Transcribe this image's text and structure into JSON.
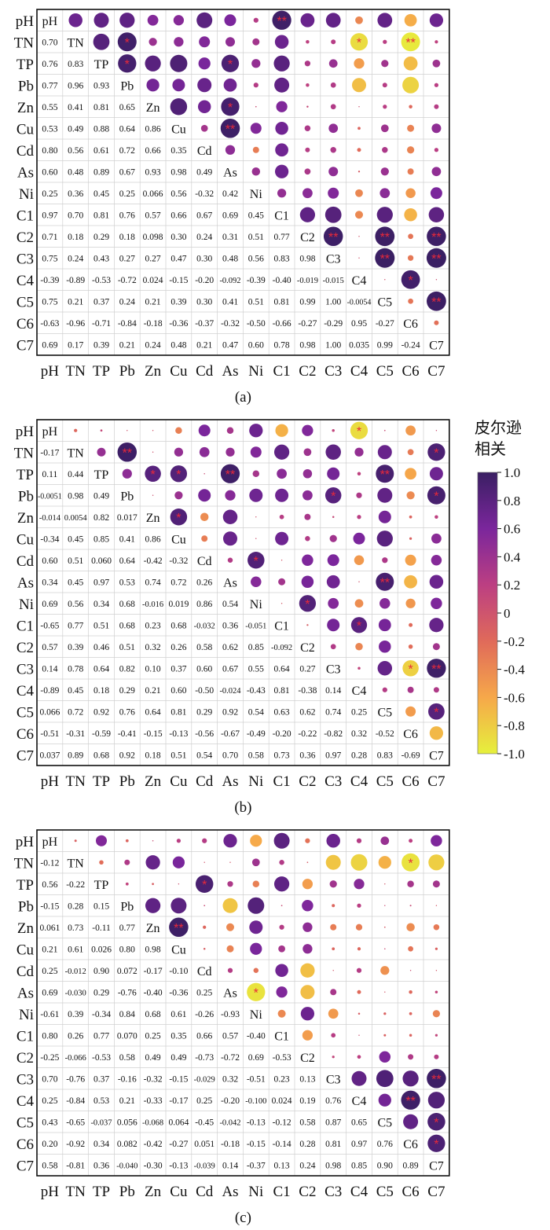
{
  "colorbar": {
    "title_line1": "皮尔逊",
    "title_line2": "相关",
    "ticks": [
      "1.0",
      "0.8",
      "0.6",
      "0.4",
      "0.2",
      "0",
      "-0.2",
      "-0.4",
      "-0.6",
      "-0.8",
      "-1.0"
    ],
    "range": [
      -1,
      1
    ],
    "colors": [
      "#e6f03c",
      "#f6a84a",
      "#e06a5a",
      "#bc3f82",
      "#7b269c",
      "#3a1f63"
    ]
  },
  "chart_data": [
    {
      "type": "heatmap",
      "panel_label": "(a)",
      "variables": [
        "pH",
        "TN",
        "TP",
        "Pb",
        "Zn",
        "Cu",
        "Cd",
        "As",
        "Ni",
        "C1",
        "C2",
        "C3",
        "C4",
        "C5",
        "C6",
        "C7"
      ],
      "lower_labels": [
        [],
        [
          "0.70"
        ],
        [
          "0.76",
          "0.83"
        ],
        [
          "0.77",
          "0.96",
          "0.93"
        ],
        [
          "0.55",
          "0.41",
          "0.81",
          "0.65"
        ],
        [
          "0.53",
          "0.49",
          "0.88",
          "0.64",
          "0.86"
        ],
        [
          "0.80",
          "0.56",
          "0.61",
          "0.72",
          "0.66",
          "0.35"
        ],
        [
          "0.60",
          "0.48",
          "0.89",
          "0.67",
          "0.93",
          "0.98",
          "0.49"
        ],
        [
          "0.25",
          "0.36",
          "0.45",
          "0.25",
          "0.066",
          "0.56",
          "-0.32",
          "0.42"
        ],
        [
          "0.97",
          "0.70",
          "0.81",
          "0.76",
          "0.57",
          "0.66",
          "0.67",
          "0.69",
          "0.45"
        ],
        [
          "0.71",
          "0.18",
          "0.29",
          "0.18",
          "0.098",
          "0.30",
          "0.24",
          "0.31",
          "0.51",
          "0.77"
        ],
        [
          "0.75",
          "0.24",
          "0.43",
          "0.27",
          "0.27",
          "0.47",
          "0.30",
          "0.48",
          "0.56",
          "0.83",
          "0.98"
        ],
        [
          "-0.39",
          "-0.89",
          "-0.53",
          "-0.72",
          "0.024",
          "-0.15",
          "-0.20",
          "-0.092",
          "-0.39",
          "-0.40",
          "-0.019",
          "-0.015"
        ],
        [
          "0.75",
          "0.21",
          "0.37",
          "0.24",
          "0.21",
          "0.39",
          "0.30",
          "0.41",
          "0.51",
          "0.81",
          "0.99",
          "1.00",
          "-0.0054"
        ],
        [
          "-0.63",
          "-0.96",
          "-0.71",
          "-0.84",
          "-0.18",
          "-0.36",
          "-0.37",
          "-0.32",
          "-0.50",
          "-0.66",
          "-0.27",
          "-0.29",
          "0.95",
          "-0.27"
        ],
        [
          "0.69",
          "0.17",
          "0.39",
          "0.21",
          "0.24",
          "0.48",
          "0.21",
          "0.47",
          "0.60",
          "0.78",
          "0.98",
          "1.00",
          "0.035",
          "0.99",
          "-0.24"
        ]
      ],
      "significance": [
        {
          "row": 0,
          "col": 9,
          "mark": "**"
        },
        {
          "row": 1,
          "col": 3,
          "mark": "*"
        },
        {
          "row": 1,
          "col": 12,
          "mark": "*"
        },
        {
          "row": 1,
          "col": 14,
          "mark": "**"
        },
        {
          "row": 2,
          "col": 3,
          "mark": "*"
        },
        {
          "row": 2,
          "col": 7,
          "mark": "*"
        },
        {
          "row": 4,
          "col": 7,
          "mark": "*"
        },
        {
          "row": 5,
          "col": 7,
          "mark": "**"
        },
        {
          "row": 10,
          "col": 11,
          "mark": "**"
        },
        {
          "row": 10,
          "col": 13,
          "mark": "**"
        },
        {
          "row": 10,
          "col": 15,
          "mark": "**"
        },
        {
          "row": 11,
          "col": 13,
          "mark": "**"
        },
        {
          "row": 11,
          "col": 15,
          "mark": "**"
        },
        {
          "row": 12,
          "col": 14,
          "mark": "*"
        },
        {
          "row": 13,
          "col": 15,
          "mark": "**"
        }
      ]
    },
    {
      "type": "heatmap",
      "panel_label": "(b)",
      "variables": [
        "pH",
        "TN",
        "TP",
        "Pb",
        "Zn",
        "Cu",
        "Cd",
        "As",
        "Ni",
        "C1",
        "C2",
        "C3",
        "C4",
        "C5",
        "C6",
        "C7"
      ],
      "lower_labels": [
        [],
        [
          "-0.17"
        ],
        [
          "0.11",
          "0.44"
        ],
        [
          "-0.0051",
          "0.98",
          "0.49"
        ],
        [
          "-0.014",
          "0.0054",
          "0.82",
          "0.017"
        ],
        [
          "-0.34",
          "0.45",
          "0.85",
          "0.41",
          "0.86"
        ],
        [
          "0.60",
          "0.51",
          "0.060",
          "0.64",
          "-0.42",
          "-0.32"
        ],
        [
          "0.34",
          "0.45",
          "0.97",
          "0.53",
          "0.74",
          "0.72",
          "0.26"
        ],
        [
          "0.69",
          "0.56",
          "0.34",
          "0.68",
          "-0.016",
          "0.019",
          "0.86",
          "0.54"
        ],
        [
          "-0.65",
          "0.77",
          "0.51",
          "0.68",
          "0.23",
          "0.68",
          "-0.032",
          "0.36",
          "-0.051"
        ],
        [
          "0.57",
          "0.39",
          "0.46",
          "0.51",
          "0.32",
          "0.26",
          "0.58",
          "0.62",
          "0.85",
          "-0.092"
        ],
        [
          "0.14",
          "0.78",
          "0.64",
          "0.82",
          "0.10",
          "0.37",
          "0.60",
          "0.67",
          "0.55",
          "0.64",
          "0.27"
        ],
        [
          "-0.89",
          "0.45",
          "0.18",
          "0.29",
          "0.21",
          "0.60",
          "-0.50",
          "-0.024",
          "-0.43",
          "0.81",
          "-0.38",
          "0.14"
        ],
        [
          "0.066",
          "0.72",
          "0.92",
          "0.76",
          "0.64",
          "0.81",
          "0.29",
          "0.92",
          "0.54",
          "0.63",
          "0.62",
          "0.74",
          "0.25"
        ],
        [
          "-0.51",
          "-0.31",
          "-0.59",
          "-0.41",
          "-0.15",
          "-0.13",
          "-0.56",
          "-0.67",
          "-0.49",
          "-0.20",
          "-0.22",
          "-0.82",
          "0.32",
          "-0.52"
        ],
        [
          "0.037",
          "0.89",
          "0.68",
          "0.92",
          "0.18",
          "0.51",
          "0.54",
          "0.70",
          "0.58",
          "0.73",
          "0.36",
          "0.97",
          "0.28",
          "0.83",
          "-0.69"
        ]
      ],
      "significance": [
        {
          "row": 0,
          "col": 12,
          "mark": "*"
        },
        {
          "row": 1,
          "col": 3,
          "mark": "**"
        },
        {
          "row": 1,
          "col": 15,
          "mark": "*"
        },
        {
          "row": 2,
          "col": 4,
          "mark": "*"
        },
        {
          "row": 2,
          "col": 5,
          "mark": "*"
        },
        {
          "row": 2,
          "col": 7,
          "mark": "**"
        },
        {
          "row": 2,
          "col": 13,
          "mark": "**"
        },
        {
          "row": 3,
          "col": 11,
          "mark": "*"
        },
        {
          "row": 3,
          "col": 15,
          "mark": "*"
        },
        {
          "row": 4,
          "col": 5,
          "mark": "*"
        },
        {
          "row": 6,
          "col": 8,
          "mark": "*"
        },
        {
          "row": 7,
          "col": 13,
          "mark": "**"
        },
        {
          "row": 8,
          "col": 10,
          "mark": "*"
        },
        {
          "row": 9,
          "col": 12,
          "mark": "*"
        },
        {
          "row": 11,
          "col": 14,
          "mark": "*"
        },
        {
          "row": 11,
          "col": 15,
          "mark": "**"
        },
        {
          "row": 13,
          "col": 15,
          "mark": "*"
        }
      ]
    },
    {
      "type": "heatmap",
      "panel_label": "(c)",
      "variables": [
        "pH",
        "TN",
        "TP",
        "Pb",
        "Zn",
        "Cu",
        "Cd",
        "As",
        "Ni",
        "C1",
        "C2",
        "C3",
        "C4",
        "C5",
        "C6",
        "C7"
      ],
      "lower_labels": [
        [],
        [
          "-0.12"
        ],
        [
          "0.56",
          "-0.22"
        ],
        [
          "-0.15",
          "0.28",
          "0.15"
        ],
        [
          "0.061",
          "0.73",
          "-0.11",
          "0.77"
        ],
        [
          "0.21",
          "0.61",
          "0.026",
          "0.80",
          "0.98"
        ],
        [
          "0.25",
          "-0.012",
          "0.90",
          "0.072",
          "-0.17",
          "-0.10"
        ],
        [
          "0.69",
          "-0.030",
          "0.29",
          "-0.76",
          "-0.40",
          "-0.36",
          "0.25"
        ],
        [
          "-0.61",
          "0.39",
          "-0.34",
          "0.84",
          "0.68",
          "0.61",
          "-0.26",
          "-0.93"
        ],
        [
          "0.80",
          "0.26",
          "0.77",
          "0.070",
          "0.25",
          "0.35",
          "0.66",
          "0.57",
          "-0.40"
        ],
        [
          "-0.25",
          "-0.066",
          "-0.53",
          "0.58",
          "0.49",
          "0.49",
          "-0.73",
          "-0.72",
          "0.69",
          "-0.53"
        ],
        [
          "0.70",
          "-0.76",
          "0.37",
          "-0.16",
          "-0.32",
          "-0.15",
          "-0.029",
          "0.32",
          "-0.51",
          "0.23",
          "0.13"
        ],
        [
          "0.25",
          "-0.84",
          "0.53",
          "0.21",
          "-0.33",
          "-0.17",
          "0.25",
          "-0.20",
          "-0.100",
          "0.024",
          "0.19",
          "0.76"
        ],
        [
          "0.43",
          "-0.65",
          "-0.037",
          "0.056",
          "-0.068",
          "0.064",
          "-0.45",
          "-0.042",
          "-0.13",
          "-0.12",
          "0.58",
          "0.87",
          "0.65"
        ],
        [
          "0.20",
          "-0.92",
          "0.34",
          "0.082",
          "-0.42",
          "-0.27",
          "0.051",
          "-0.18",
          "-0.15",
          "-0.14",
          "0.28",
          "0.81",
          "0.97",
          "0.76"
        ],
        [
          "0.58",
          "-0.81",
          "0.36",
          "-0.040",
          "-0.30",
          "-0.13",
          "-0.039",
          "0.14",
          "-0.37",
          "0.13",
          "0.24",
          "0.98",
          "0.85",
          "0.90",
          "0.89"
        ]
      ],
      "significance": [
        {
          "row": 1,
          "col": 14,
          "mark": "*"
        },
        {
          "row": 2,
          "col": 6,
          "mark": "*"
        },
        {
          "row": 4,
          "col": 5,
          "mark": "**"
        },
        {
          "row": 7,
          "col": 8,
          "mark": "*"
        },
        {
          "row": 11,
          "col": 15,
          "mark": "**"
        },
        {
          "row": 12,
          "col": 14,
          "mark": "**"
        },
        {
          "row": 13,
          "col": 15,
          "mark": "*"
        },
        {
          "row": 14,
          "col": 15,
          "mark": "*"
        }
      ]
    }
  ]
}
